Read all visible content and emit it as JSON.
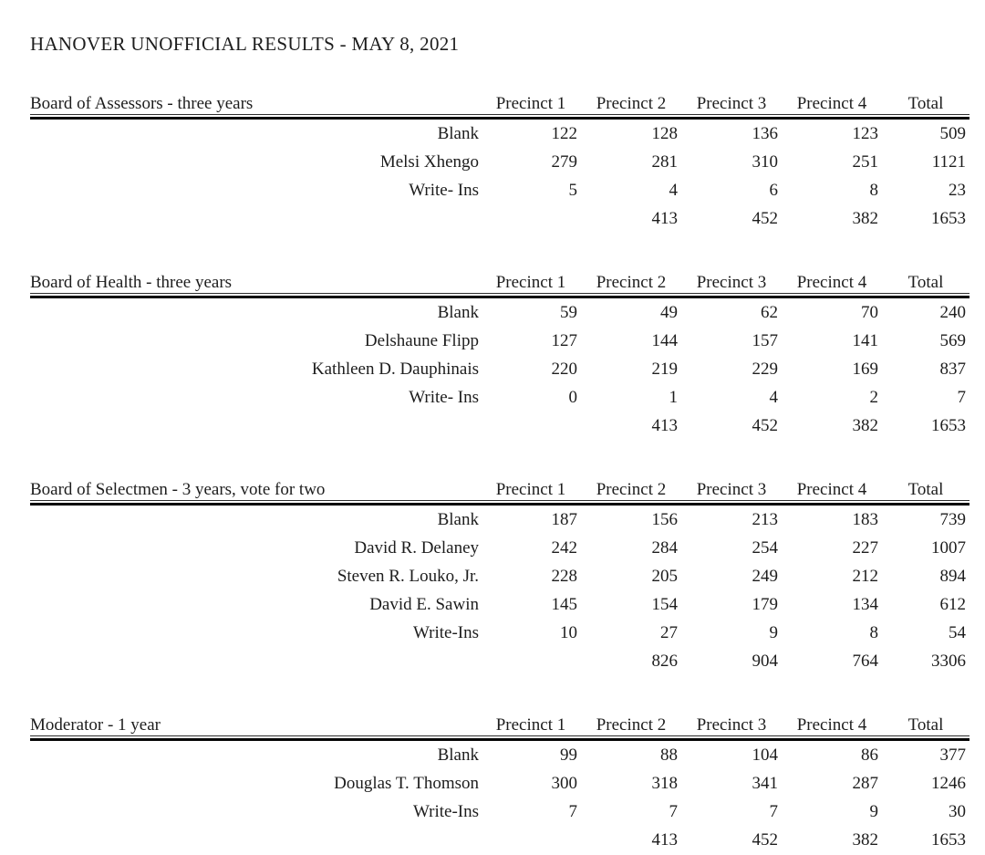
{
  "page": {
    "title": "HANOVER UNOFFICIAL RESULTS - MAY 8, 2021"
  },
  "colors": {
    "background": "#ffffff",
    "text": "#1d1d1d",
    "rule": "#060606"
  },
  "columns": [
    "Precinct 1",
    "Precinct 2",
    "Precinct 3",
    "Precinct 4",
    "Total"
  ],
  "tables": [
    {
      "title": "Board of Assessors - three years",
      "rows": [
        {
          "label": "Blank",
          "values": [
            "122",
            "128",
            "136",
            "123",
            "509"
          ]
        },
        {
          "label": "Melsi Xhengo",
          "values": [
            "279",
            "281",
            "310",
            "251",
            "1121"
          ]
        },
        {
          "label": "Write- Ins",
          "values": [
            "5",
            "4",
            "6",
            "8",
            "23"
          ]
        }
      ],
      "totals": {
        "label": "",
        "values": [
          "",
          "413",
          "452",
          "382",
          "1653"
        ]
      }
    },
    {
      "title": "Board of Health - three years",
      "rows": [
        {
          "label": "Blank",
          "values": [
            "59",
            "49",
            "62",
            "70",
            "240"
          ]
        },
        {
          "label": "Delshaune Flipp",
          "values": [
            "127",
            "144",
            "157",
            "141",
            "569"
          ]
        },
        {
          "label": "Kathleen D. Dauphinais",
          "values": [
            "220",
            "219",
            "229",
            "169",
            "837"
          ]
        },
        {
          "label": "Write- Ins",
          "values": [
            "0",
            "1",
            "4",
            "2",
            "7"
          ]
        }
      ],
      "totals": {
        "label": "",
        "values": [
          "",
          "413",
          "452",
          "382",
          "1653"
        ]
      }
    },
    {
      "title": "Board of Selectmen - 3 years, vote for two",
      "rows": [
        {
          "label": "Blank",
          "values": [
            "187",
            "156",
            "213",
            "183",
            "739"
          ]
        },
        {
          "label": "David R. Delaney",
          "values": [
            "242",
            "284",
            "254",
            "227",
            "1007"
          ]
        },
        {
          "label": "Steven R. Louko, Jr.",
          "values": [
            "228",
            "205",
            "249",
            "212",
            "894"
          ]
        },
        {
          "label": "David E. Sawin",
          "values": [
            "145",
            "154",
            "179",
            "134",
            "612"
          ]
        },
        {
          "label": "Write-Ins",
          "values": [
            "10",
            "27",
            "9",
            "8",
            "54"
          ]
        }
      ],
      "totals": {
        "label": "",
        "values": [
          "",
          "826",
          "904",
          "764",
          "3306"
        ]
      }
    },
    {
      "title": "Moderator - 1 year",
      "rows": [
        {
          "label": "Blank",
          "values": [
            "99",
            "88",
            "104",
            "86",
            "377"
          ]
        },
        {
          "label": "Douglas T. Thomson",
          "values": [
            "300",
            "318",
            "341",
            "287",
            "1246"
          ]
        },
        {
          "label": "Write-Ins",
          "values": [
            "7",
            "7",
            "7",
            "9",
            "30"
          ]
        }
      ],
      "totals": {
        "label": "",
        "values": [
          "",
          "413",
          "452",
          "382",
          "1653"
        ]
      }
    }
  ]
}
